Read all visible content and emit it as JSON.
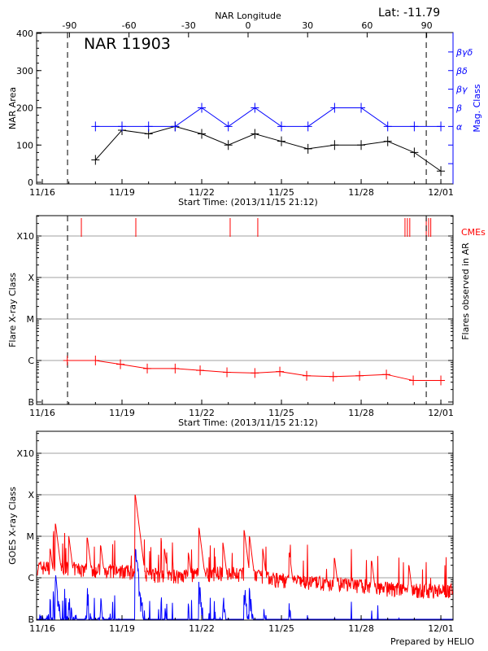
{
  "colors": {
    "area": "#000000",
    "mag": "#0000ff",
    "flare": "#ff0000",
    "goes_long": "#ff0000",
    "goes_short": "#0000ff",
    "grid": "#a0a0a0"
  },
  "header": {
    "lat_label": "Lat: -11.79",
    "footer": "Prepared by HELIO"
  },
  "chart_data": [
    {
      "type": "line",
      "title": "NAR 11903",
      "top_axis_label": "NAR Longitude",
      "top_ticks": [
        "-90",
        "-60",
        "-30",
        "0",
        "30",
        "60",
        "90"
      ],
      "top_tick_values": [
        -90,
        -60,
        -30,
        0,
        30,
        60,
        90
      ],
      "xlabel": "Start Time: (2013/11/15 21:12)",
      "x_ticks": [
        "11/16",
        "11/19",
        "11/22",
        "11/25",
        "11/28",
        "12/01"
      ],
      "x_tick_days": [
        0,
        3,
        6,
        9,
        12,
        15
      ],
      "ylabel": "NAR Area",
      "y_ticks": [
        "0",
        "100",
        "200",
        "300",
        "400"
      ],
      "ylim": [
        0,
        400
      ],
      "ylabel_right": "Mag. Class",
      "right_ticks": [
        "α",
        "β",
        "βγ",
        "βδ",
        "βγδ"
      ],
      "limb_days": [
        0.95,
        14.45
      ],
      "series": [
        {
          "name": "NAR Area",
          "days": [
            2,
            3,
            4,
            5,
            6,
            7,
            8,
            9,
            10,
            11,
            12,
            13,
            14,
            15
          ],
          "values": [
            60,
            140,
            130,
            150,
            130,
            100,
            130,
            110,
            90,
            100,
            100,
            110,
            80,
            30
          ]
        },
        {
          "name": "Mag. Class",
          "days": [
            2,
            3,
            4,
            5,
            6,
            7,
            8,
            9,
            10,
            11,
            12,
            13,
            14,
            15
          ],
          "values": [
            "α",
            "α",
            "α",
            "α",
            "β",
            "α",
            "β",
            "α",
            "α",
            "β",
            "β",
            "α",
            "α",
            "α"
          ]
        }
      ]
    },
    {
      "type": "line",
      "xlabel": "Start Time: (2013/11/15 21:12)",
      "x_ticks": [
        "11/16",
        "11/19",
        "11/22",
        "11/25",
        "11/28",
        "12/01"
      ],
      "ylabel": "Flare X-ray Class",
      "ylabel_right": "Flares observed in AR",
      "y_ticks": [
        "B",
        "C",
        "M",
        "X",
        "X10"
      ],
      "cme_label": "CMEs",
      "cme_days": [
        1.47,
        3.52,
        7.07,
        8.11,
        13.65,
        13.74,
        13.83,
        14.45,
        14.54,
        14.62
      ],
      "series": [
        {
          "name": "Flare class",
          "days": [
            0.94,
            2.0,
            2.94,
            3.95,
            5.0,
            5.94,
            6.95,
            8.0,
            8.94,
            9.95,
            10.95,
            11.94,
            12.95,
            13.96,
            15.0
          ],
          "flux": [
            1e-06,
            1e-06,
            8.1e-07,
            6.4e-07,
            6.4e-07,
            5.8e-07,
            5.2e-07,
            5e-07,
            5.4e-07,
            4.3e-07,
            4.1e-07,
            4.3e-07,
            4.6e-07,
            3.3e-07,
            3.3e-07
          ]
        }
      ]
    },
    {
      "type": "line",
      "ylabel": "GOES X-ray Class",
      "x_ticks": [
        "11/16",
        "11/19",
        "11/22",
        "11/25",
        "11/28",
        "12/01"
      ],
      "y_ticks": [
        "B",
        "C",
        "M",
        "X",
        "X10"
      ],
      "long_baseline": {
        "days": [
          0,
          1,
          2,
          3,
          4,
          5,
          6,
          7,
          8,
          9,
          10,
          11,
          12,
          13,
          14,
          15.3
        ],
        "flux": [
          1.6e-06,
          1.5e-06,
          1.4e-06,
          1.3e-06,
          1.1e-06,
          1e-06,
          1.1e-06,
          1.2e-06,
          1e-06,
          8e-07,
          7e-07,
          6.5e-07,
          6e-07,
          5e-07,
          4.5e-07,
          4.5e-07
        ]
      },
      "long_peaks": {
        "days": [
          0.3,
          0.5,
          1.0,
          1.7,
          2.2,
          3.5,
          4.6,
          5.5,
          5.9,
          6.8,
          7.6,
          7.8,
          8.3,
          9.3,
          11.0,
          12.4,
          13.8
        ],
        "flux": [
          5e-06,
          2e-05,
          1e-05,
          9e-06,
          6e-06,
          0.0001,
          5e-06,
          4e-06,
          1.6e-05,
          7e-06,
          1.4e-05,
          1e-05,
          5e-06,
          4e-06,
          3e-06,
          2.5e-06,
          2e-06
        ]
      }
    }
  ]
}
